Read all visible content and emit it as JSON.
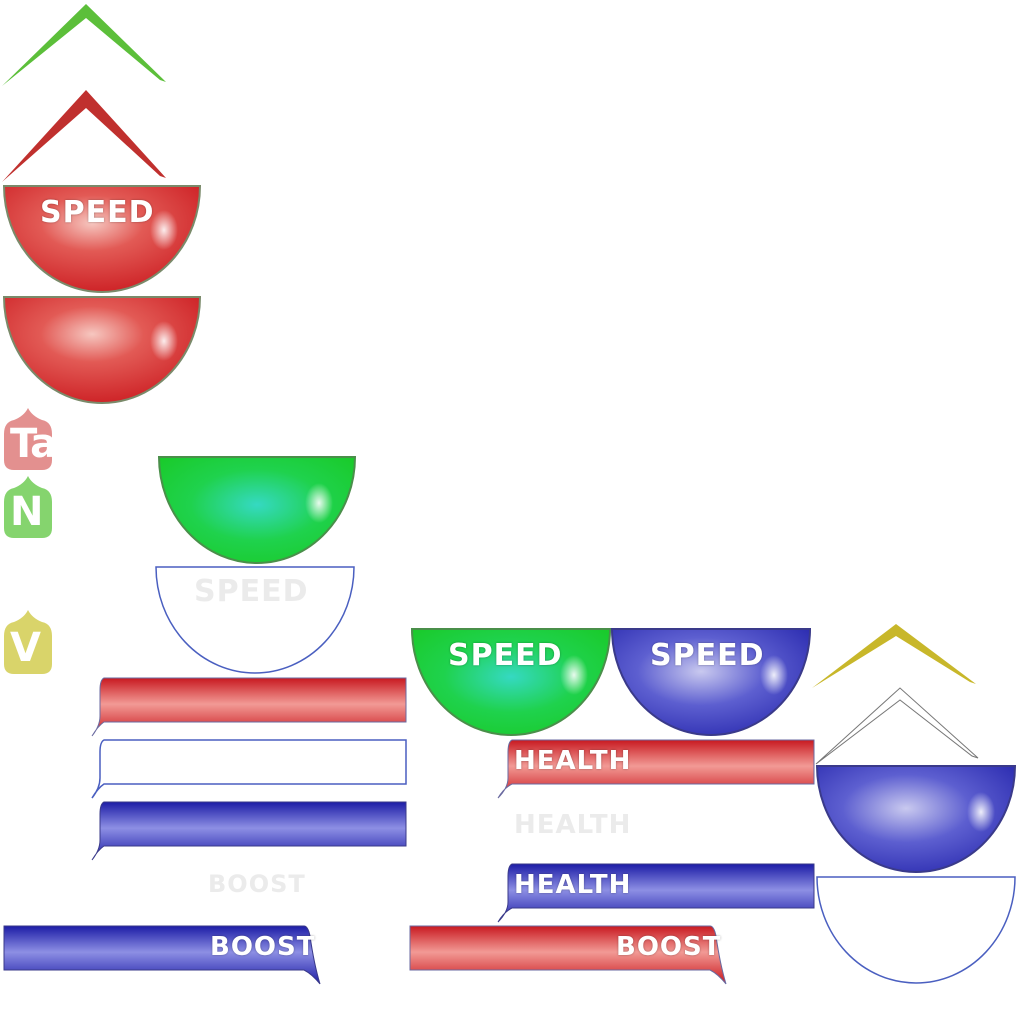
{
  "labels": {
    "speed": "SPEED",
    "health": "HEALTH",
    "boost": "BOOST"
  },
  "tags": {
    "red": "Ta",
    "green": "N",
    "yellow": "V"
  },
  "colors": {
    "red": "#d9272b",
    "green": "#1ecc33",
    "blue": "#2424a8",
    "chevron_green": "#5cbf3a",
    "chevron_red": "#c0302e",
    "chevron_yellow": "#c8b72a",
    "outline": "#4a5fc0",
    "tag_red": "#e3908f",
    "tag_green": "#85d46e",
    "tag_yellow": "#d9d46a"
  }
}
